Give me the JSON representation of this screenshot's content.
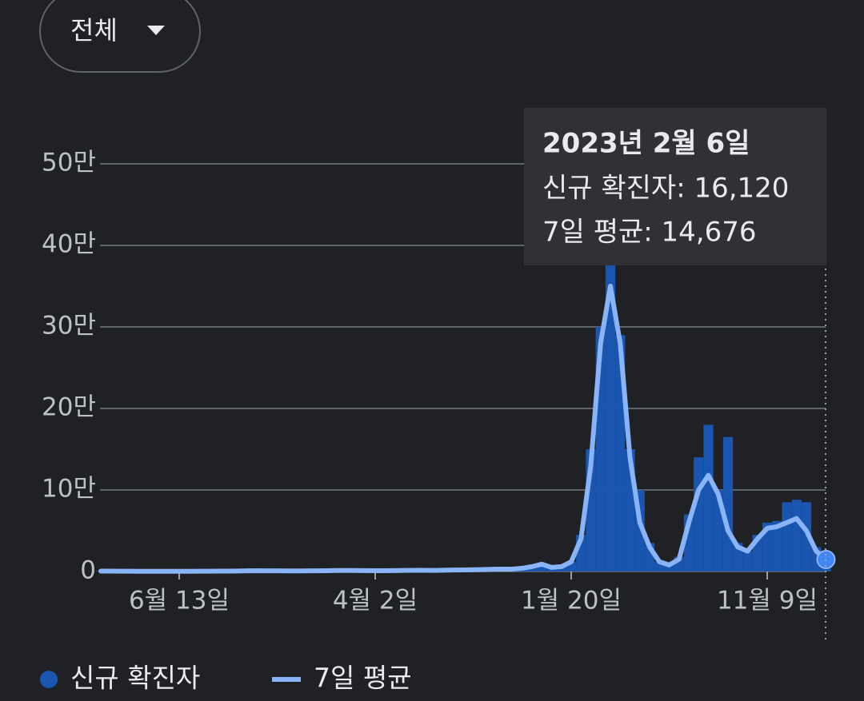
{
  "filter": {
    "label": "전체"
  },
  "chart_data": {
    "type": "bar-line",
    "categories": [
      null,
      null,
      null,
      null,
      null,
      null,
      null,
      null,
      "6월 13일",
      null,
      null,
      null,
      null,
      null,
      null,
      null,
      null,
      null,
      null,
      null,
      null,
      null,
      null,
      null,
      null,
      null,
      null,
      null,
      "4월 2일",
      null,
      null,
      null,
      null,
      null,
      null,
      null,
      null,
      null,
      null,
      null,
      null,
      null,
      null,
      null,
      null,
      null,
      null,
      null,
      "1월 20일",
      null,
      null,
      null,
      null,
      null,
      null,
      null,
      null,
      null,
      null,
      null,
      null,
      null,
      null,
      null,
      null,
      null,
      null,
      null,
      "11월 9일",
      null,
      null,
      null,
      null,
      null,
      null
    ],
    "series": [
      {
        "name": "신규 확진자",
        "color": "#1a56b0",
        "kind": "bar",
        "values": [
          500,
          500,
          400,
          400,
          300,
          300,
          300,
          300,
          300,
          300,
          400,
          400,
          500,
          500,
          600,
          800,
          1000,
          900,
          800,
          700,
          700,
          800,
          900,
          1000,
          1200,
          1300,
          1200,
          1100,
          1000,
          1000,
          1100,
          1300,
          1500,
          1500,
          1400,
          1600,
          1800,
          2000,
          2200,
          2500,
          2800,
          3000,
          3000,
          4000,
          6000,
          9000,
          5000,
          6000,
          12000,
          45000,
          150000,
          300000,
          400000,
          290000,
          150000,
          100000,
          35000,
          12000,
          8000,
          18000,
          70000,
          140000,
          180000,
          100000,
          165000,
          35000,
          25000,
          45000,
          60000,
          62000,
          85000,
          88000,
          85000,
          30000,
          16120
        ]
      },
      {
        "name": "7일 평균",
        "color": "#8ab4f8",
        "kind": "line",
        "values": [
          500,
          500,
          400,
          400,
          300,
          300,
          300,
          300,
          300,
          300,
          400,
          400,
          500,
          500,
          600,
          800,
          1000,
          900,
          800,
          700,
          700,
          800,
          900,
          1000,
          1200,
          1300,
          1200,
          1100,
          1000,
          1000,
          1100,
          1300,
          1500,
          1500,
          1400,
          1600,
          1800,
          2000,
          2200,
          2500,
          2800,
          3000,
          3000,
          4000,
          6000,
          9000,
          5000,
          6000,
          12000,
          40000,
          130000,
          280000,
          350000,
          280000,
          140000,
          60000,
          30000,
          12000,
          8000,
          15000,
          60000,
          100000,
          118000,
          95000,
          50000,
          30000,
          25000,
          40000,
          53000,
          55000,
          60000,
          65000,
          50000,
          25000,
          14676
        ]
      }
    ],
    "ylim": [
      0,
      500000
    ],
    "yticks": [
      0,
      {
        "value": 100000,
        "label": "10만"
      },
      {
        "value": 200000,
        "label": "20만"
      },
      {
        "value": 300000,
        "label": "30만"
      },
      {
        "value": 400000,
        "label": "40만"
      },
      {
        "value": 500000,
        "label": "50만"
      }
    ],
    "grid": true,
    "tooltip": {
      "title": "2023년 2월 6일",
      "lines": [
        "신규 확진자: 16,120",
        "7일 평균: 14,676"
      ]
    }
  }
}
